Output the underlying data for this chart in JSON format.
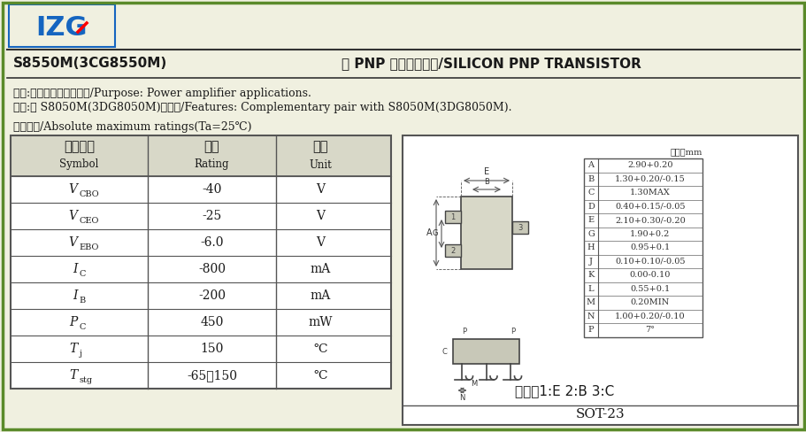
{
  "bg_color": "#f0f0e0",
  "border_color": "#5a8a2a",
  "logo_text": "IZG",
  "logo_color": "#1565c0",
  "title_left": "S8550M(3CG8550M)",
  "title_right": "硅 PNP 半导体三极管/SILICON PNP TRANSISTOR",
  "line1": "用途:用于功率放大电路。/Purpose: Power amplifier applications.",
  "line2": "特点:与 S8050M(3DG8050M)互补。/Features: Complementary pair with S8050M(3DG8050M).",
  "table_title": "极限参数/Absolute maximum ratings(Ta=25℃)",
  "col_headers_zh": [
    "参数符号",
    "数値",
    "单位"
  ],
  "col_headers_en": [
    "Symbol",
    "Rating",
    "Unit"
  ],
  "rows": [
    {
      "symbol_main": "V",
      "symbol_sub": "CBO",
      "rating": "-40",
      "unit": "V"
    },
    {
      "symbol_main": "V",
      "symbol_sub": "CEO",
      "rating": "-25",
      "unit": "V"
    },
    {
      "symbol_main": "V",
      "symbol_sub": "EBO",
      "rating": "-6.0",
      "unit": "V"
    },
    {
      "symbol_main": "I",
      "symbol_sub": "C",
      "rating": "-800",
      "unit": "mA"
    },
    {
      "symbol_main": "I",
      "symbol_sub": "B",
      "rating": "-200",
      "unit": "mA"
    },
    {
      "symbol_main": "P",
      "symbol_sub": "C",
      "rating": "450",
      "unit": "mW"
    },
    {
      "symbol_main": "T",
      "symbol_sub": "j",
      "rating": "150",
      "unit": "℃"
    },
    {
      "symbol_main": "T",
      "symbol_sub": "stg",
      "rating": "-65～150",
      "unit": "℃"
    }
  ],
  "dim_table_title": "单位：mm",
  "dim_rows": [
    [
      "A",
      "2.90+0.20"
    ],
    [
      "B",
      "1.30+0.20/-0.15"
    ],
    [
      "C",
      "1.30MAX"
    ],
    [
      "D",
      "0.40+0.15/-0.05"
    ],
    [
      "E",
      "2.10+0.30/-0.20"
    ],
    [
      "G",
      "1.90+0.2"
    ],
    [
      "H",
      "0.95+0.1"
    ],
    [
      "J",
      "0.10+0.10/-0.05"
    ],
    [
      "K",
      "0.00-0.10"
    ],
    [
      "L",
      "0.55+0.1"
    ],
    [
      "M",
      "0.20MIN"
    ],
    [
      "N",
      "1.00+0.20/-0.10"
    ],
    [
      "P",
      "7°"
    ]
  ],
  "pin_label": "引脚：1:E 2:B 3:C",
  "package_label": "SOT-23",
  "text_color": "#1a1a1a",
  "table_border": "#555555",
  "header_bg": "#d8d8c8",
  "white": "#ffffff"
}
